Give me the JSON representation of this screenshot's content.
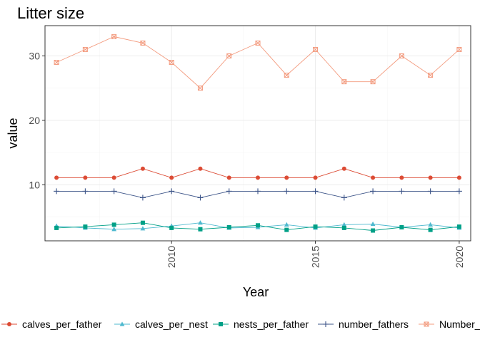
{
  "chart_data": {
    "type": "line",
    "title": "Litter size",
    "xlabel": "Year",
    "ylabel": "value",
    "x": [
      2006,
      2007,
      2008,
      2009,
      2010,
      2011,
      2012,
      2013,
      2014,
      2015,
      2016,
      2017,
      2018,
      2019,
      2020
    ],
    "xlim": [
      2005.6,
      2020.4
    ],
    "ylim": [
      1.3,
      34.7
    ],
    "xticks": [
      2010,
      2015,
      2020
    ],
    "yticks": [
      10,
      20,
      30
    ],
    "xtick_labels": [
      "2010",
      "2015",
      "2020"
    ],
    "ytick_labels": [
      "10",
      "20",
      "30"
    ],
    "grid": true,
    "legend_position": "bottom",
    "series": [
      {
        "name": "calves_per_father",
        "color": "#dc4b34",
        "marker": "circle",
        "values": [
          11.1,
          11.1,
          11.1,
          12.5,
          11.1,
          12.5,
          11.1,
          11.1,
          11.1,
          11.1,
          12.5,
          11.1,
          11.1,
          11.1,
          11.1
        ]
      },
      {
        "name": "calves_per_nest",
        "color": "#4eb9cf",
        "marker": "triangle",
        "values": [
          3.6,
          3.3,
          3.1,
          3.2,
          3.6,
          4.1,
          3.3,
          3.4,
          3.8,
          3.3,
          3.8,
          3.9,
          3.4,
          3.8,
          3.3
        ]
      },
      {
        "name": "nests_per_father",
        "color": "#00a087",
        "marker": "square",
        "values": [
          3.3,
          3.5,
          3.8,
          4.1,
          3.3,
          3.1,
          3.4,
          3.7,
          3.0,
          3.5,
          3.3,
          2.9,
          3.4,
          3.0,
          3.5
        ]
      },
      {
        "name": "number_fathers",
        "color": "#3c5488",
        "marker": "plus",
        "values": [
          9,
          9,
          9,
          8,
          9,
          8,
          9,
          9,
          9,
          9,
          8,
          9,
          9,
          9,
          9
        ]
      },
      {
        "name": "Number_",
        "color": "#f39b7f",
        "marker": "square-x",
        "values": [
          29,
          31,
          33,
          32,
          29,
          25,
          30,
          32,
          27,
          31,
          26,
          26,
          30,
          27,
          31
        ]
      }
    ]
  }
}
